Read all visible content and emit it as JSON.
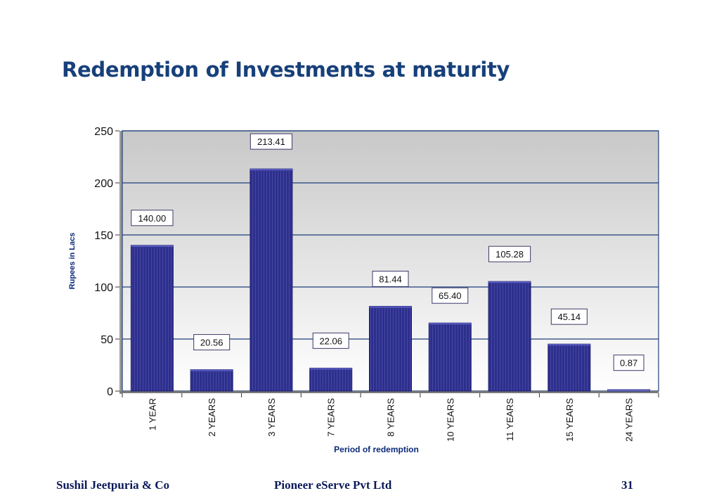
{
  "slide": {
    "title": "Redemption of Investments at maturity",
    "footer_left": "Sushil Jeetpuria & Co",
    "footer_center": "Pioneer eServe Pvt Ltd",
    "page_number": "31"
  },
  "colors": {
    "title": "#17407a",
    "bar": "#2d2f8f",
    "bar_edge": "#1b1d6b",
    "gridline": "#1f3f7a",
    "plot_bg_top": "#c8c8c8",
    "plot_bg_bottom": "#ffffff"
  },
  "chart_data": {
    "type": "bar",
    "categories": [
      "1 YEAR",
      "2 YEARS",
      "3 YEARS",
      "7 YEARS",
      "8 YEARS",
      "10 YEARS",
      "11 YEARS",
      "15 YEARS",
      "24 YEARS"
    ],
    "values": [
      140.0,
      20.56,
      213.41,
      22.06,
      81.44,
      65.4,
      105.28,
      45.14,
      0.87
    ],
    "data_labels": [
      "140.00",
      "20.56",
      "213.41",
      "22.06",
      "81.44",
      "65.40",
      "105.28",
      "45.14",
      "0.87"
    ],
    "xlabel": "Period of redemption",
    "ylabel": "Rupees in Lacs",
    "ylim": [
      0,
      250
    ],
    "yticks": [
      0,
      50,
      100,
      150,
      200,
      250
    ],
    "grid": true,
    "legend": "none"
  }
}
